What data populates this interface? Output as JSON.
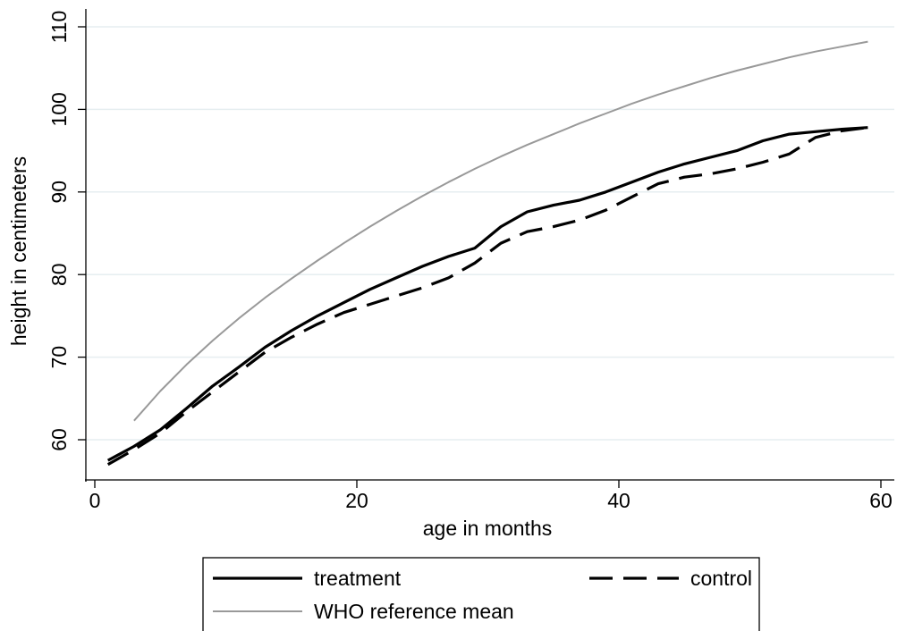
{
  "chart_data": {
    "type": "line",
    "xlabel": "age in months",
    "ylabel": "height in centimeters",
    "xlim": [
      0,
      60
    ],
    "ylim": [
      55,
      112
    ],
    "xticks": [
      0,
      20,
      40,
      60
    ],
    "yticks": [
      60,
      70,
      80,
      90,
      100,
      110
    ],
    "grid": "horizontal",
    "legend_position": "bottom",
    "series": [
      {
        "name": "treatment",
        "color": "#000000",
        "style": "solid",
        "x": [
          1,
          3,
          5,
          7,
          9,
          11,
          13,
          15,
          17,
          19,
          21,
          23,
          25,
          27,
          29,
          31,
          33,
          35,
          37,
          39,
          41,
          43,
          45,
          47,
          49,
          51,
          53,
          55,
          57,
          59
        ],
        "y": [
          57.5,
          59.2,
          61.2,
          63.8,
          66.5,
          68.8,
          71.2,
          73.2,
          75.0,
          76.6,
          78.2,
          79.6,
          81.0,
          82.2,
          83.2,
          85.8,
          87.6,
          88.4,
          89.0,
          90.0,
          91.2,
          92.4,
          93.4,
          94.2,
          95.0,
          96.2,
          97.0,
          97.3,
          97.6,
          97.8
        ]
      },
      {
        "name": "control",
        "color": "#000000",
        "style": "dashed",
        "x": [
          1,
          3,
          5,
          7,
          9,
          11,
          13,
          15,
          17,
          19,
          21,
          23,
          25,
          27,
          29,
          31,
          33,
          35,
          37,
          39,
          41,
          43,
          45,
          47,
          49,
          51,
          53,
          55,
          57,
          59
        ],
        "y": [
          57.0,
          58.8,
          60.8,
          63.4,
          65.8,
          68.2,
          70.6,
          72.4,
          74.0,
          75.4,
          76.4,
          77.4,
          78.4,
          79.6,
          81.4,
          83.8,
          85.2,
          85.8,
          86.6,
          87.8,
          89.4,
          91.0,
          91.8,
          92.2,
          92.8,
          93.6,
          94.6,
          96.6,
          97.4,
          97.8
        ]
      },
      {
        "name": "WHO reference mean",
        "color": "#999999",
        "style": "solid",
        "x": [
          3,
          5,
          7,
          9,
          11,
          13,
          15,
          17,
          19,
          21,
          23,
          25,
          27,
          29,
          31,
          33,
          35,
          37,
          39,
          41,
          43,
          45,
          47,
          49,
          51,
          53,
          55,
          57,
          59
        ],
        "y": [
          62.3,
          65.9,
          69.1,
          72.0,
          74.7,
          77.2,
          79.5,
          81.7,
          83.8,
          85.8,
          87.7,
          89.5,
          91.2,
          92.8,
          94.3,
          95.7,
          97.0,
          98.3,
          99.5,
          100.7,
          101.8,
          102.8,
          103.8,
          104.7,
          105.5,
          106.3,
          107.0,
          107.6,
          108.2
        ]
      }
    ]
  }
}
